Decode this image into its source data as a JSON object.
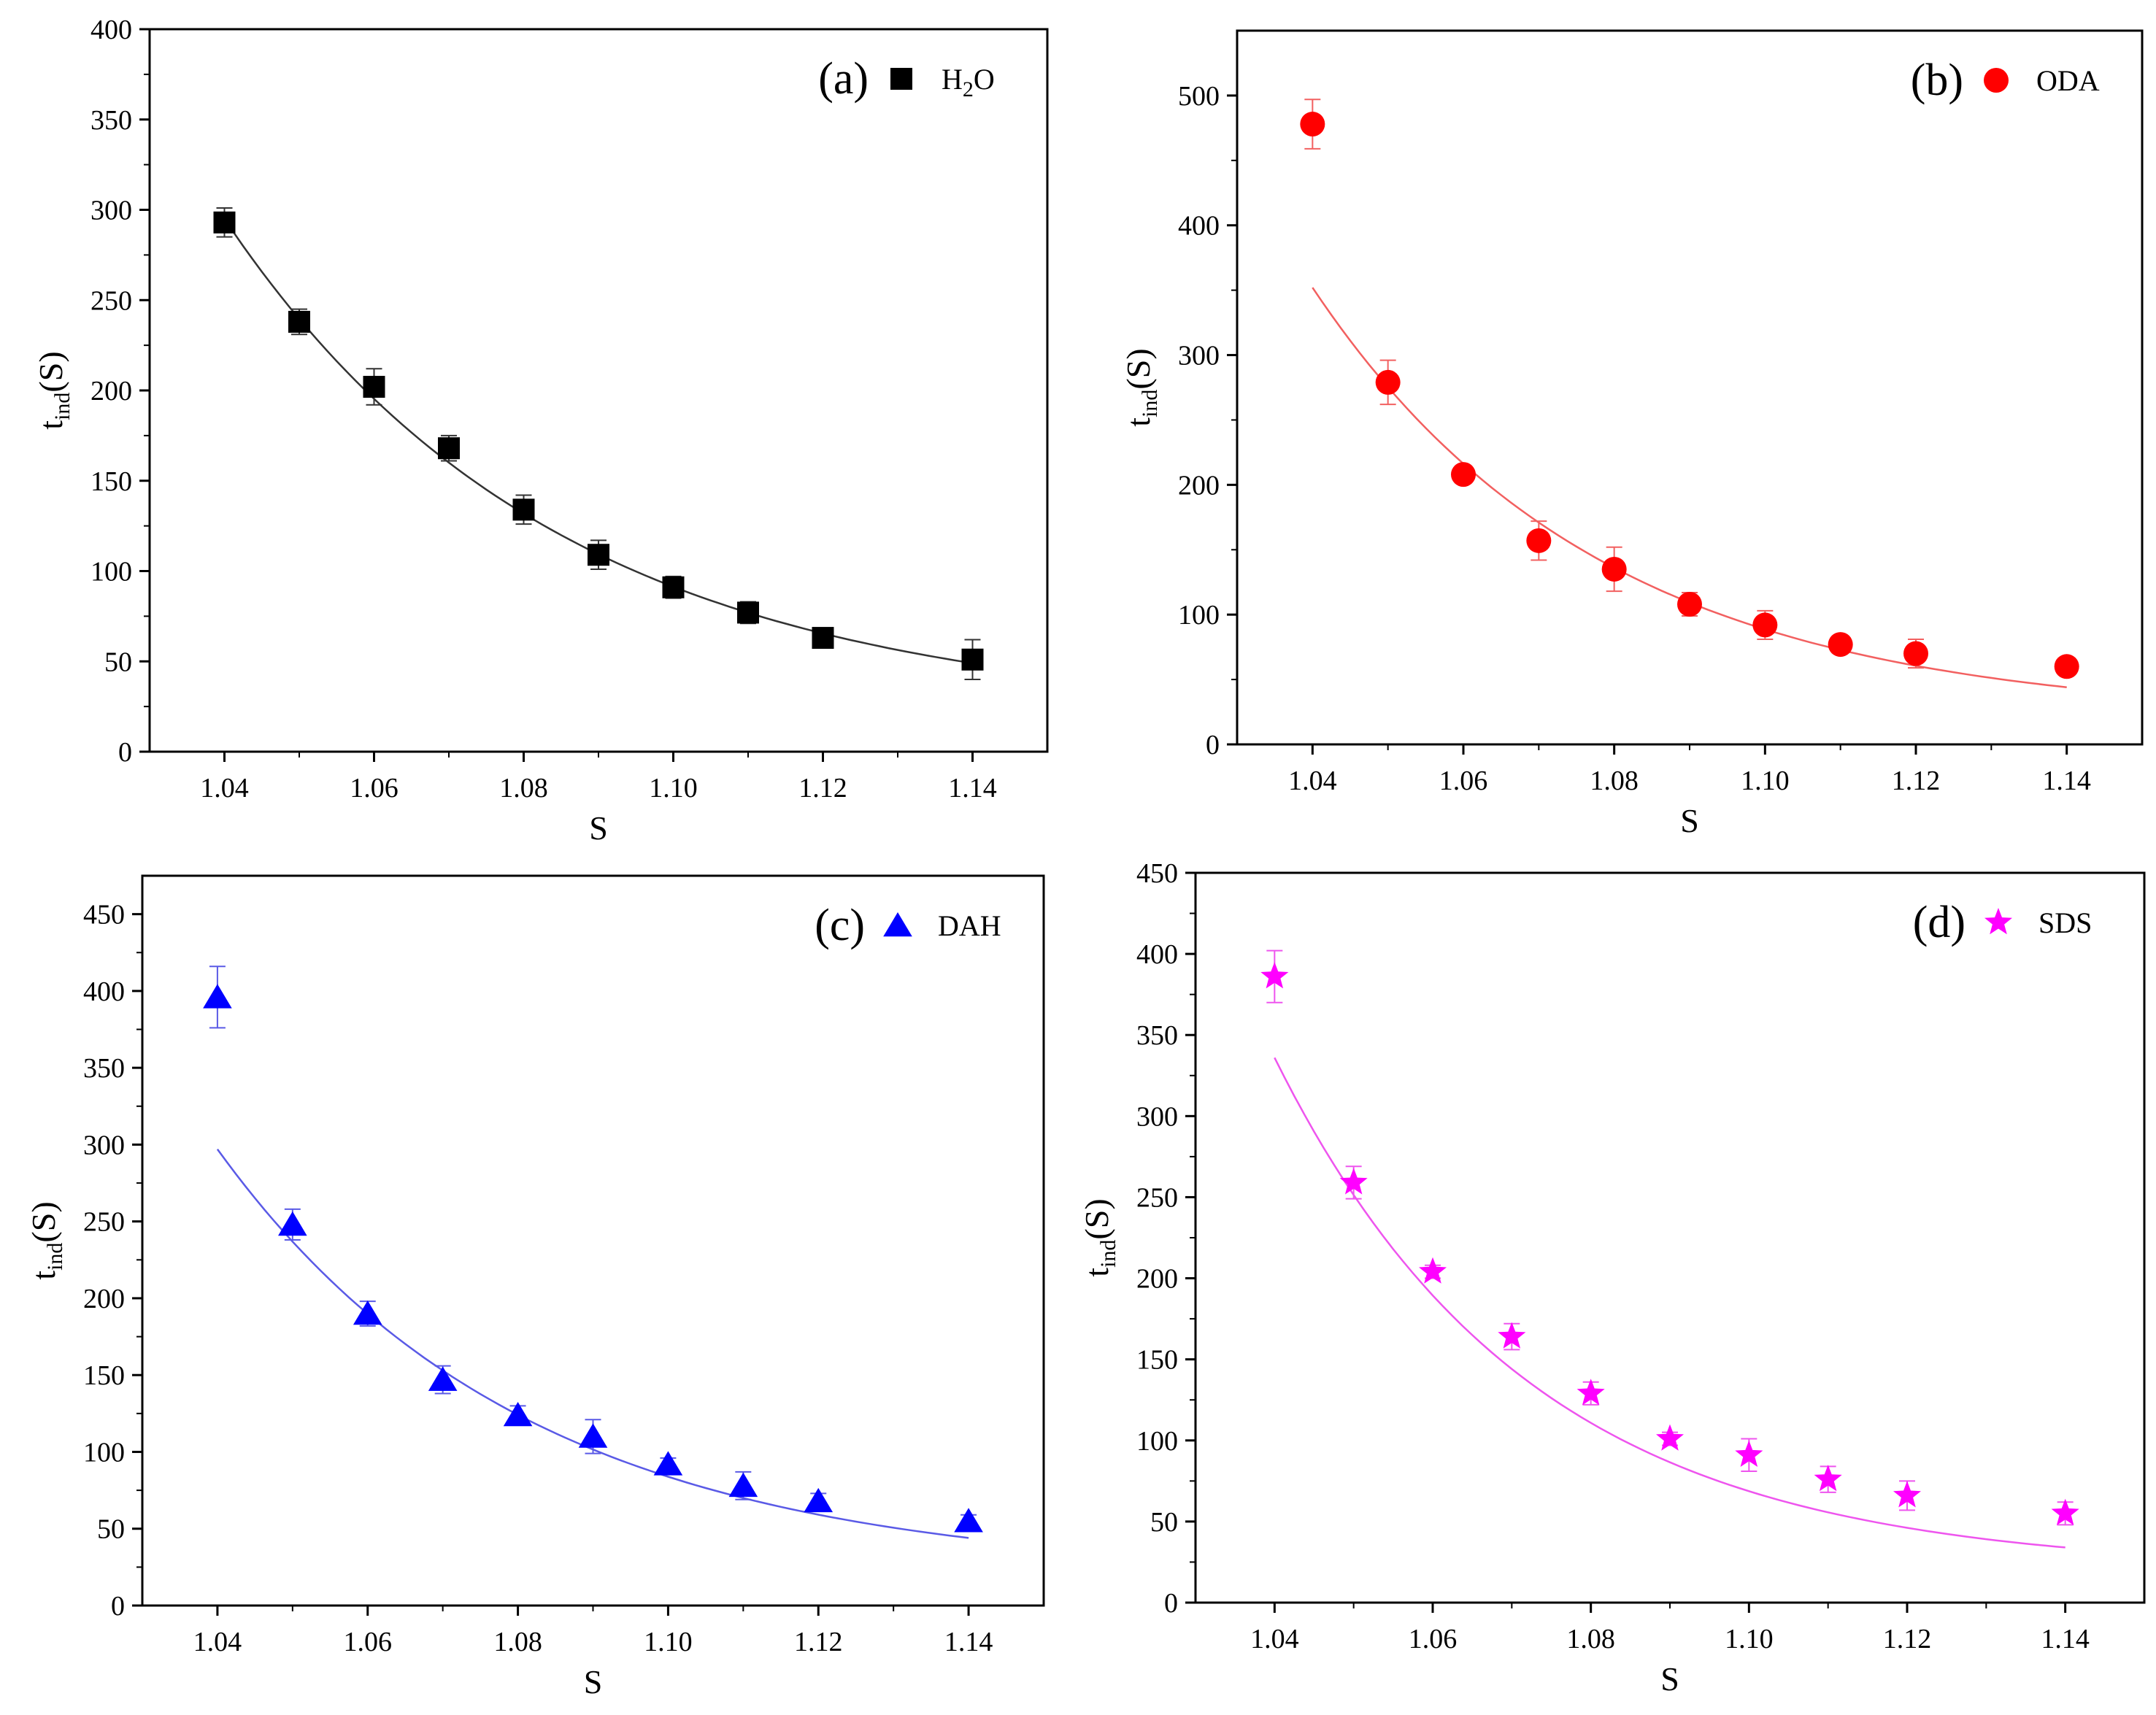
{
  "figure": {
    "panels": [
      "a",
      "b",
      "c",
      "d"
    ]
  },
  "chart_data": [
    {
      "id": "a",
      "type": "scatter",
      "panel_label": "(a)",
      "legend": {
        "name": "H2O",
        "main": "H",
        "sub": "2",
        "tail": "O",
        "marker": "square",
        "color": "#000000",
        "fit_color": "#333333",
        "placement": "top-right"
      },
      "xlabel": "S",
      "ylabel": {
        "main": "t",
        "sub": "ind",
        "tail": "(S)"
      },
      "xlim": [
        1.03,
        1.15
      ],
      "ylim": [
        0,
        400
      ],
      "xticks": [
        1.04,
        1.06,
        1.08,
        1.1,
        1.12,
        1.14
      ],
      "xtick_labels": [
        "1.04",
        "1.06",
        "1.08",
        "1.10",
        "1.12",
        "1.14"
      ],
      "yticks": [
        0,
        50,
        100,
        150,
        200,
        250,
        300,
        350,
        400
      ],
      "ytick_labels": [
        "0",
        "50",
        "100",
        "150",
        "200",
        "250",
        "300",
        "350",
        "400"
      ],
      "x": [
        1.04,
        1.05,
        1.06,
        1.07,
        1.08,
        1.09,
        1.1,
        1.11,
        1.12,
        1.14
      ],
      "y": [
        293,
        238,
        202,
        168,
        134,
        109,
        91,
        77,
        63,
        51
      ],
      "err": [
        8,
        7,
        10,
        7,
        8,
        8,
        6,
        6,
        5,
        11
      ],
      "fit": {
        "x_start": 1.04,
        "x_end": 1.14,
        "y_start": 295,
        "y_end": 49,
        "y_inf": 20
      }
    },
    {
      "id": "b",
      "type": "scatter",
      "panel_label": "(b)",
      "legend": {
        "name": "ODA",
        "main": "ODA",
        "sub": "",
        "tail": "",
        "marker": "circle",
        "color": "#ff0000",
        "fit_color": "#f26060",
        "placement": "top-right"
      },
      "xlabel": "S",
      "ylabel": {
        "main": "t",
        "sub": "ind",
        "tail": "(S)"
      },
      "xlim": [
        1.03,
        1.15
      ],
      "ylim": [
        0,
        550
      ],
      "xticks": [
        1.04,
        1.06,
        1.08,
        1.1,
        1.12,
        1.14
      ],
      "xtick_labels": [
        "1.04",
        "1.06",
        "1.08",
        "1.10",
        "1.12",
        "1.14"
      ],
      "yticks": [
        0,
        100,
        200,
        300,
        400,
        500
      ],
      "ytick_labels": [
        "0",
        "100",
        "200",
        "300",
        "400",
        "500"
      ],
      "x": [
        1.04,
        1.05,
        1.06,
        1.07,
        1.08,
        1.09,
        1.1,
        1.11,
        1.12,
        1.14
      ],
      "y": [
        478,
        279,
        208,
        157,
        135,
        108,
        92,
        77,
        70,
        60
      ],
      "err": [
        19,
        17,
        4,
        15,
        17,
        9,
        11,
        3,
        11,
        4
      ],
      "fit": {
        "x_start": 1.04,
        "x_end": 1.14,
        "y_start": 352,
        "y_end": 44,
        "y_inf": 20
      }
    },
    {
      "id": "c",
      "type": "scatter",
      "panel_label": "(c)",
      "legend": {
        "name": "DAH",
        "main": "DAH",
        "sub": "",
        "tail": "",
        "marker": "triangle",
        "color": "#0000ff",
        "fit_color": "#5a5ae6",
        "placement": "top-right"
      },
      "xlabel": "S",
      "ylabel": {
        "main": "t",
        "sub": "ind",
        "tail": "(S)"
      },
      "xlim": [
        1.03,
        1.15
      ],
      "ylim": [
        0,
        475
      ],
      "xticks": [
        1.04,
        1.06,
        1.08,
        1.1,
        1.12,
        1.14
      ],
      "xtick_labels": [
        "1.04",
        "1.06",
        "1.08",
        "1.10",
        "1.12",
        "1.14"
      ],
      "yticks": [
        0,
        50,
        100,
        150,
        200,
        250,
        300,
        350,
        400,
        450
      ],
      "ytick_labels": [
        "0",
        "50",
        "100",
        "150",
        "200",
        "250",
        "300",
        "350",
        "400",
        "450"
      ],
      "x": [
        1.04,
        1.05,
        1.06,
        1.07,
        1.08,
        1.09,
        1.1,
        1.11,
        1.12,
        1.14
      ],
      "y": [
        396,
        248,
        190,
        147,
        124,
        110,
        92,
        78,
        68,
        55
      ],
      "err": [
        20,
        10,
        8,
        9,
        6,
        11,
        4,
        9,
        5,
        4
      ],
      "fit": {
        "x_start": 1.04,
        "x_end": 1.14,
        "y_start": 297,
        "y_end": 44,
        "y_inf": 20
      }
    },
    {
      "id": "d",
      "type": "scatter",
      "panel_label": "(d)",
      "legend": {
        "name": "SDS",
        "main": "SDS",
        "sub": "",
        "tail": "",
        "marker": "star",
        "color": "#ff00ff",
        "fit_color": "#ee55ee",
        "placement": "top-right"
      },
      "xlabel": "S",
      "ylabel": {
        "main": "t",
        "sub": "ind",
        "tail": "(S)"
      },
      "xlim": [
        1.03,
        1.15
      ],
      "ylim": [
        0,
        450
      ],
      "xticks": [
        1.04,
        1.06,
        1.08,
        1.1,
        1.12,
        1.14
      ],
      "xtick_labels": [
        "1.04",
        "1.06",
        "1.08",
        "1.10",
        "1.12",
        "1.14"
      ],
      "yticks": [
        0,
        50,
        100,
        150,
        200,
        250,
        300,
        350,
        400,
        450
      ],
      "ytick_labels": [
        "0",
        "50",
        "100",
        "150",
        "200",
        "250",
        "300",
        "350",
        "400",
        "450"
      ],
      "x": [
        1.04,
        1.05,
        1.06,
        1.07,
        1.08,
        1.09,
        1.1,
        1.11,
        1.12,
        1.14
      ],
      "y": [
        386,
        259,
        204,
        164,
        129,
        101,
        91,
        76,
        66,
        55
      ],
      "err": [
        16,
        10,
        4,
        8,
        7,
        4,
        10,
        8,
        9,
        7
      ],
      "fit": {
        "x_start": 1.04,
        "x_end": 1.14,
        "y_start": 336,
        "y_end": 34,
        "y_inf": 20
      }
    }
  ]
}
